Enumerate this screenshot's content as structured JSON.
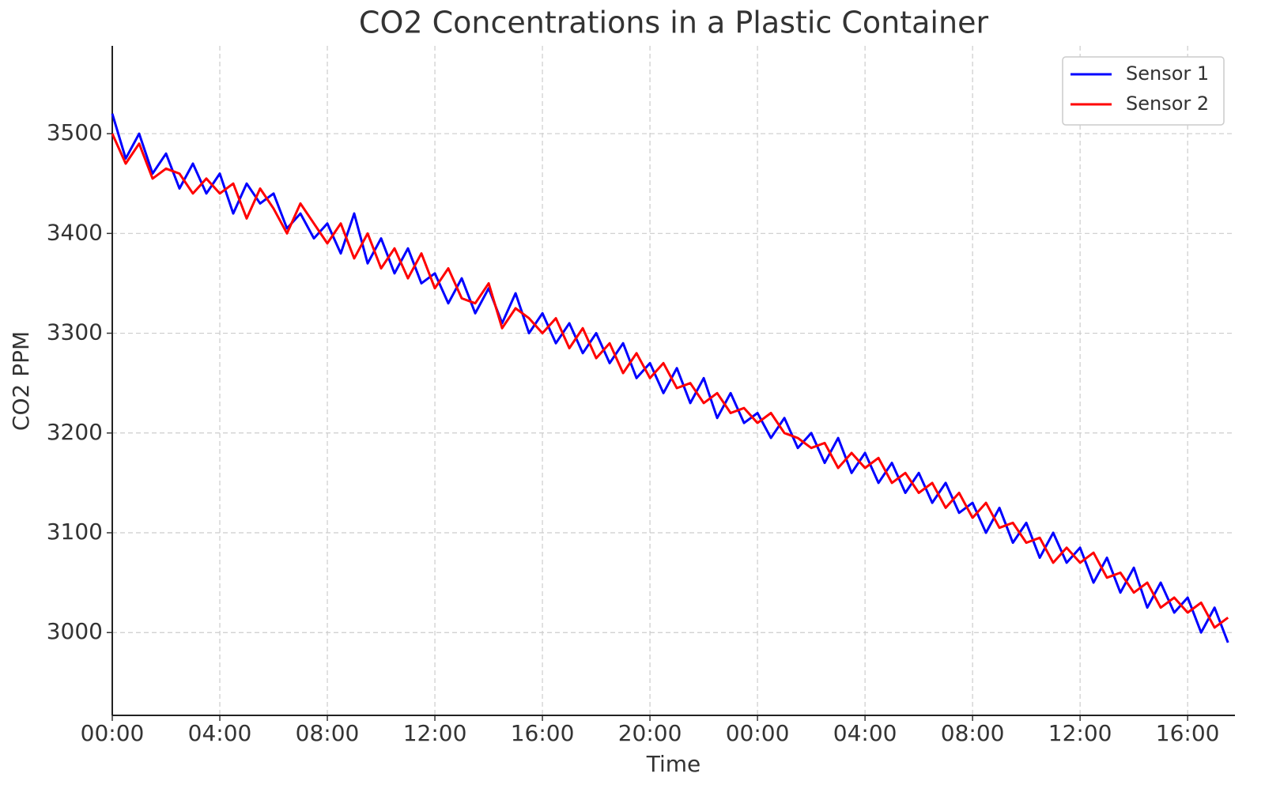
{
  "chart_data": {
    "type": "line",
    "title": "CO2 Concentrations in a Plastic Container",
    "x_label": "Time",
    "y_label": "CO2 PPM",
    "x": [
      0,
      0.5,
      1,
      1.5,
      2,
      2.5,
      3,
      3.5,
      4,
      4.5,
      5,
      5.5,
      6,
      6.5,
      7,
      7.5,
      8,
      8.5,
      9,
      9.5,
      10,
      10.5,
      11,
      11.5,
      12,
      12.5,
      13,
      13.5,
      14,
      14.5,
      15,
      15.5,
      16,
      16.5,
      17,
      17.5,
      18,
      18.5,
      19,
      19.5,
      20,
      20.5,
      21,
      21.5,
      22,
      22.5,
      23,
      23.5,
      24,
      24.5,
      25,
      25.5,
      26,
      26.5,
      27,
      27.5,
      28,
      28.5,
      29,
      29.5,
      30,
      30.5,
      31,
      31.5,
      32,
      32.5,
      33,
      33.5,
      34,
      34.5,
      35,
      35.5,
      36,
      36.5,
      37,
      37.5,
      38,
      38.5,
      39,
      39.5,
      40,
      40.5,
      41,
      41.5
    ],
    "series": [
      {
        "name": "Sensor 1",
        "color": "#0000ff",
        "values": [
          3520,
          3475,
          3500,
          3460,
          3480,
          3445,
          3470,
          3440,
          3460,
          3420,
          3450,
          3430,
          3440,
          3405,
          3420,
          3395,
          3410,
          3380,
          3420,
          3370,
          3395,
          3360,
          3385,
          3350,
          3360,
          3330,
          3355,
          3320,
          3345,
          3310,
          3340,
          3300,
          3320,
          3290,
          3310,
          3280,
          3300,
          3270,
          3290,
          3255,
          3270,
          3240,
          3265,
          3230,
          3255,
          3215,
          3240,
          3210,
          3220,
          3195,
          3215,
          3185,
          3200,
          3170,
          3195,
          3160,
          3180,
          3150,
          3170,
          3140,
          3160,
          3130,
          3150,
          3120,
          3130,
          3100,
          3125,
          3090,
          3110,
          3075,
          3100,
          3070,
          3085,
          3050,
          3075,
          3040,
          3065,
          3025,
          3050,
          3020,
          3035,
          3000,
          3025,
          2990
        ]
      },
      {
        "name": "Sensor 2",
        "color": "#ff0000",
        "values": [
          3500,
          3470,
          3490,
          3455,
          3465,
          3460,
          3440,
          3455,
          3440,
          3450,
          3415,
          3445,
          3425,
          3400,
          3430,
          3410,
          3390,
          3410,
          3375,
          3400,
          3365,
          3385,
          3355,
          3380,
          3345,
          3365,
          3335,
          3330,
          3350,
          3305,
          3325,
          3315,
          3300,
          3315,
          3285,
          3305,
          3275,
          3290,
          3260,
          3280,
          3255,
          3270,
          3245,
          3250,
          3230,
          3240,
          3220,
          3225,
          3210,
          3220,
          3200,
          3195,
          3185,
          3190,
          3165,
          3180,
          3165,
          3175,
          3150,
          3160,
          3140,
          3150,
          3125,
          3140,
          3115,
          3130,
          3105,
          3110,
          3090,
          3095,
          3070,
          3085,
          3070,
          3080,
          3055,
          3060,
          3040,
          3050,
          3025,
          3035,
          3020,
          3030,
          3005,
          3015
        ]
      }
    ],
    "xlim": [
      0,
      41.76
    ],
    "xticks": [
      {
        "value": 0,
        "label": "00:00"
      },
      {
        "value": 4,
        "label": "04:00"
      },
      {
        "value": 8,
        "label": "08:00"
      },
      {
        "value": 12,
        "label": "12:00"
      },
      {
        "value": 16,
        "label": "16:00"
      },
      {
        "value": 20,
        "label": "20:00"
      },
      {
        "value": 24,
        "label": "00:00"
      },
      {
        "value": 28,
        "label": "04:00"
      },
      {
        "value": 32,
        "label": "08:00"
      },
      {
        "value": 36,
        "label": "12:00"
      },
      {
        "value": 40,
        "label": "16:00"
      }
    ],
    "ylim": [
      2917,
      3588
    ],
    "yticks": [
      3000,
      3100,
      3200,
      3300,
      3400,
      3500
    ],
    "grid": true,
    "legend": "upper right"
  }
}
